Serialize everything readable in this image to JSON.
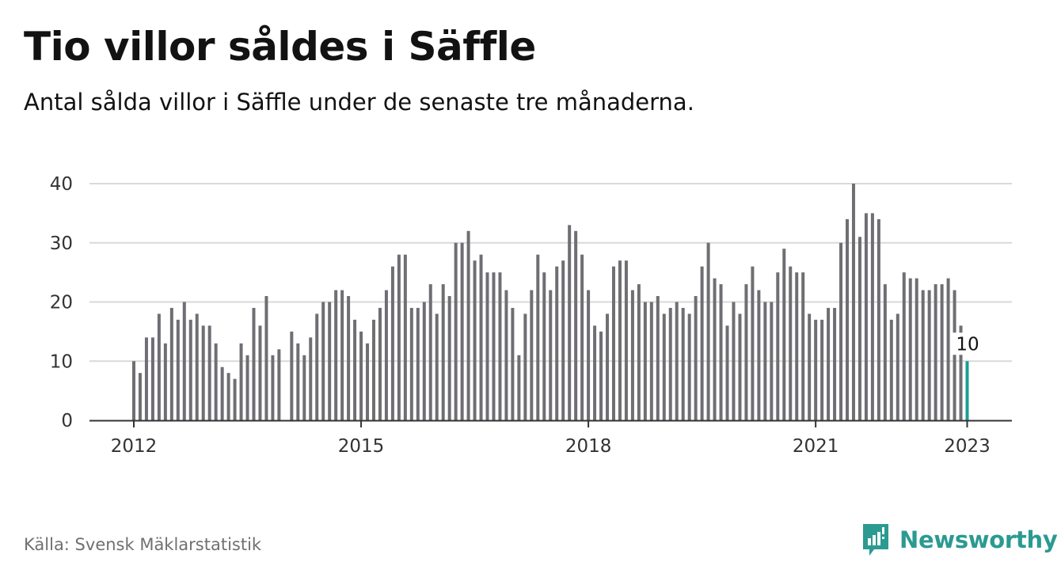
{
  "title": "Tio villor såldes i Säffle",
  "subtitle": "Antal sålda villor i Säffle under de senaste tre månaderna.",
  "source": "Källa: Svensk Mäklarstatistik",
  "brand": {
    "name": "Newsworthy",
    "icon": "newsworthy-logo-icon",
    "color": "#2b9a91"
  },
  "colors": {
    "bar": "#6e6e73",
    "highlight": "#1a9e95",
    "grid": "#d9d9d9",
    "axis": "#333333"
  },
  "chart_data": {
    "type": "bar",
    "title": "",
    "xlabel": "",
    "ylabel": "",
    "ylim": [
      0,
      40
    ],
    "yticks": [
      0,
      10,
      20,
      30,
      40
    ],
    "grid": true,
    "x_start": "2012-01",
    "x_ticks": [
      "2012",
      "2015",
      "2018",
      "2021",
      "2023"
    ],
    "highlight_last": true,
    "last_label": "10",
    "series": [
      {
        "values": [
          10,
          8,
          14,
          14,
          18,
          13,
          19,
          17,
          20,
          17,
          18,
          16,
          16,
          13,
          9,
          8,
          7,
          13,
          11,
          19,
          16,
          21,
          11,
          12,
          null,
          15,
          13,
          11,
          14,
          18,
          20,
          20,
          22,
          22,
          21,
          17,
          15,
          13,
          17,
          19,
          22,
          26,
          28,
          28,
          19,
          19,
          20,
          23,
          18,
          23,
          21,
          30,
          30,
          32,
          27,
          28,
          25,
          25,
          25,
          22,
          19,
          11,
          18,
          22,
          28,
          25,
          22,
          26,
          27,
          33,
          32,
          28,
          22,
          16,
          15,
          18,
          26,
          27,
          27,
          22,
          23,
          20,
          20,
          21,
          18,
          19,
          20,
          19,
          18,
          21,
          26,
          30,
          24,
          23,
          16,
          20,
          18,
          23,
          26,
          22,
          20,
          20,
          25,
          29,
          26,
          25,
          25,
          18,
          17,
          17,
          19,
          19,
          30,
          34,
          40,
          31,
          35,
          35,
          34,
          23,
          17,
          18,
          25,
          24,
          24,
          22,
          22,
          23,
          23,
          24,
          22,
          16,
          10
        ]
      }
    ]
  }
}
